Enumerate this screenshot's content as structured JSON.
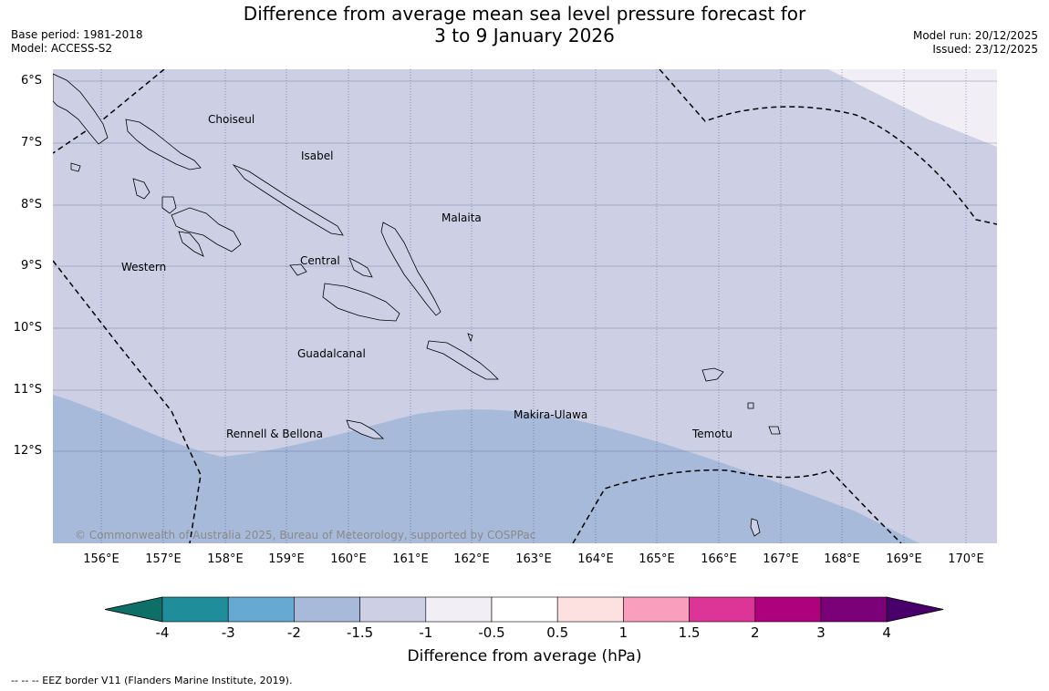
{
  "title_line1": "Difference from average mean sea level pressure forecast for",
  "title_line2": "3 to 9 January 2026",
  "base_period": "Base period: 1981-2018",
  "model": "Model: ACCESS-S2",
  "model_run": "Model run: 20/12/2025",
  "issued": "Issued: 23/12/2025",
  "lat_labels": [
    "6°S",
    "7°S",
    "8°S",
    "9°S",
    "10°S",
    "11°S",
    "12°S"
  ],
  "lon_labels": [
    "156°E",
    "157°E",
    "158°E",
    "159°E",
    "160°E",
    "161°E",
    "162°E",
    "163°E",
    "164°E",
    "165°E",
    "166°E",
    "167°E",
    "168°E",
    "169°E",
    "170°E"
  ],
  "regions": {
    "choiseul": "Choiseul",
    "isabel": "Isabel",
    "malaita": "Malaita",
    "western": "Western",
    "central": "Central",
    "guadalcanal": "Guadalcanal",
    "makira": "Makira-Ulawa",
    "rennell": "Rennell & Bellona",
    "temotu": "Temotu"
  },
  "copyright": "© Commonwealth of Australia 2025, Bureau of Meteorology, supported by COSPPac",
  "colorbar": {
    "ticks": [
      "-4",
      "-3",
      "-2",
      "-1.5",
      "-1",
      "-0.5",
      "0.5",
      "1",
      "1.5",
      "2",
      "3",
      "4"
    ],
    "colors": [
      "#0d6f68",
      "#1f8e9a",
      "#66a9d1",
      "#a7bada",
      "#cdd0e5",
      "#f1eef5",
      "#ffffff",
      "#fde0e0",
      "#f99fbd",
      "#dd3497",
      "#ae017e",
      "#7a0177",
      "#49006a"
    ],
    "label": "Difference from average (hPa)"
  },
  "footnote": "--  --  -- EEZ border V11 (Flanders Marine Institute, 2019)."
}
